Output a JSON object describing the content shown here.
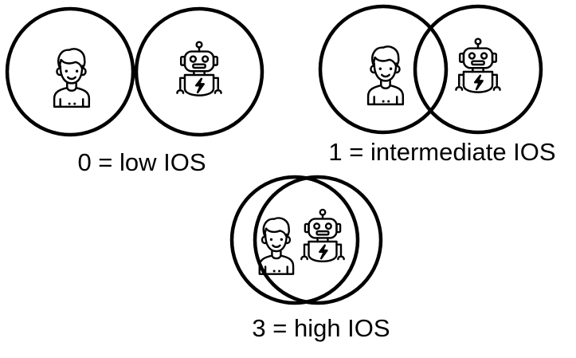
{
  "diagram": {
    "icons": {
      "human": "person-icon",
      "ai": "robot-icon"
    },
    "levels": [
      {
        "label": "0 = low IOS",
        "overlap": "none"
      },
      {
        "label": "1 = intermediate IOS",
        "overlap": "partial"
      },
      {
        "label": "3 = high IOS",
        "overlap": "almost-complete"
      }
    ]
  }
}
